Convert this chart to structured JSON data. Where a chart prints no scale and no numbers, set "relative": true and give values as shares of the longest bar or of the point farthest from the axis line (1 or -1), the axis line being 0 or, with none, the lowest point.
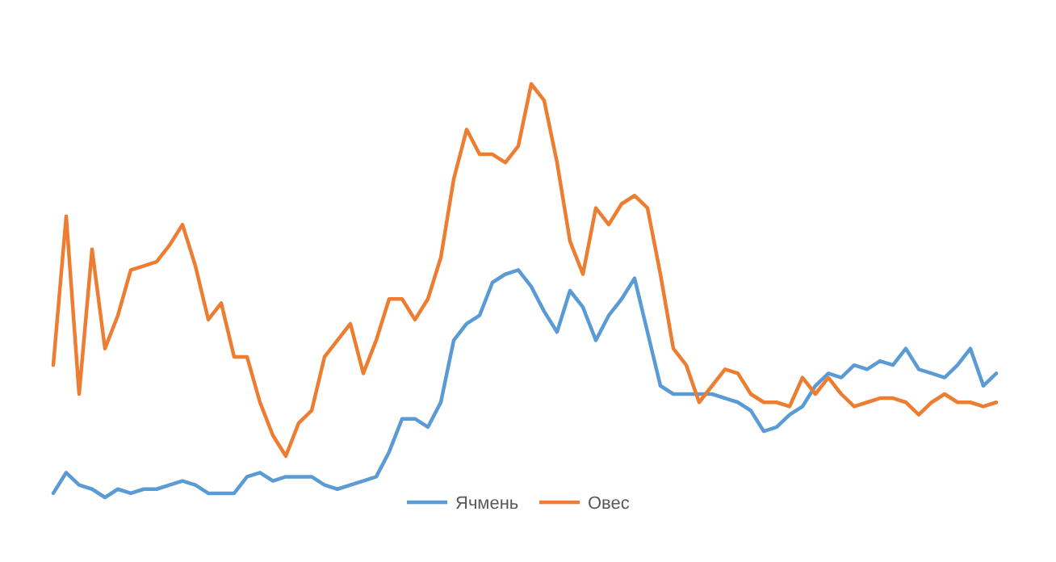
{
  "chart_data": {
    "type": "line",
    "relative": true,
    "legend": "bottom",
    "categories": [
      null,
      null,
      null,
      null,
      null,
      null,
      null,
      null,
      null,
      null,
      null,
      null,
      null,
      null,
      null,
      null,
      null,
      null,
      null,
      null,
      null,
      null,
      null,
      null,
      null,
      null,
      null,
      null,
      null,
      null,
      null,
      null,
      null,
      null,
      null,
      null,
      null,
      null,
      null,
      null,
      null,
      null,
      null,
      null,
      null,
      null,
      null,
      null,
      null,
      null,
      null,
      null,
      null,
      null,
      null,
      null,
      null,
      null,
      null,
      null,
      null,
      null,
      null,
      null,
      null,
      null,
      null,
      null,
      null,
      null,
      null,
      null,
      null,
      null
    ],
    "series": [
      {
        "name": "Ячмень",
        "color": "#5b9bd5",
        "values": [
          0.01,
          0.06,
          0.03,
          0.02,
          0,
          0.02,
          0.01,
          0.02,
          0.02,
          0.03,
          0.04,
          0.03,
          0.01,
          0.01,
          0.01,
          0.05,
          0.06,
          0.04,
          0.05,
          0.05,
          0.05,
          0.03,
          0.02,
          0.03,
          0.04,
          0.05,
          0.11,
          0.19,
          0.19,
          0.17,
          0.23,
          0.38,
          0.42,
          0.44,
          0.52,
          0.54,
          0.55,
          0.51,
          0.45,
          0.4,
          0.5,
          0.46,
          0.38,
          0.44,
          0.48,
          0.53,
          0.4,
          0.27,
          0.25,
          0.25,
          0.25,
          0.25,
          0.24,
          0.23,
          0.21,
          0.16,
          0.17,
          0.2,
          0.22,
          0.27,
          0.3,
          0.29,
          0.32,
          0.31,
          0.33,
          0.32,
          0.36,
          0.31,
          0.3,
          0.29,
          0.32,
          0.36,
          0.27,
          0.3
        ]
      },
      {
        "name": "Овес",
        "color": "#ed7d31",
        "values": [
          0.32,
          0.68,
          0.25,
          0.6,
          0.36,
          0.44,
          0.55,
          0.56,
          0.57,
          0.61,
          0.66,
          0.56,
          0.43,
          0.47,
          0.34,
          0.34,
          0.23,
          0.15,
          0.1,
          0.18,
          0.21,
          0.34,
          0.38,
          0.42,
          0.3,
          0.38,
          0.48,
          0.48,
          0.43,
          0.48,
          0.58,
          0.77,
          0.89,
          0.83,
          0.83,
          0.81,
          0.85,
          1,
          0.96,
          0.81,
          0.62,
          0.54,
          0.7,
          0.66,
          0.71,
          0.73,
          0.7,
          0.54,
          0.36,
          0.32,
          0.23,
          0.27,
          0.31,
          0.3,
          0.25,
          0.23,
          0.23,
          0.22,
          0.29,
          0.25,
          0.29,
          0.25,
          0.22,
          0.23,
          0.24,
          0.24,
          0.23,
          0.2,
          0.23,
          0.25,
          0.23,
          0.23,
          0.22,
          0.23
        ]
      }
    ]
  }
}
